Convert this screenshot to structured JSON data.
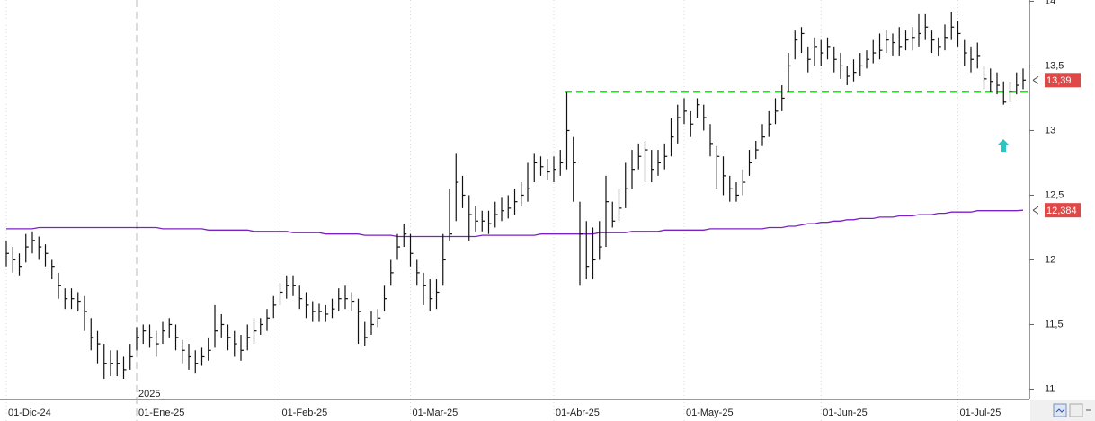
{
  "chart_data": {
    "type": "ohlc",
    "categories": [
      "01-Dic-24",
      null,
      null,
      null,
      null,
      null,
      null,
      null,
      null,
      null,
      null,
      null,
      null,
      null,
      null,
      null,
      null,
      null,
      null,
      null,
      "01-Ene-25",
      null,
      null,
      null,
      null,
      null,
      null,
      null,
      null,
      null,
      null,
      null,
      null,
      null,
      null,
      null,
      null,
      null,
      null,
      null,
      null,
      null,
      "01-Feb-25",
      null,
      null,
      null,
      null,
      null,
      null,
      null,
      null,
      null,
      null,
      null,
      null,
      null,
      null,
      null,
      null,
      null,
      null,
      null,
      "01-Mar-25",
      null,
      null,
      null,
      null,
      null,
      null,
      null,
      null,
      null,
      null,
      null,
      null,
      null,
      null,
      null,
      null,
      null,
      null,
      null,
      null,
      null,
      "01-Abr-25",
      null,
      null,
      null,
      null,
      null,
      null,
      null,
      null,
      null,
      null,
      null,
      null,
      null,
      null,
      null,
      null,
      null,
      null,
      null,
      "01-May-25",
      null,
      null,
      null,
      null,
      null,
      null,
      null,
      null,
      null,
      null,
      null,
      null,
      null,
      null,
      null,
      null,
      null,
      null,
      null,
      null,
      "01-Jun-25",
      null,
      null,
      null,
      null,
      null,
      null,
      null,
      null,
      null,
      null,
      null,
      null,
      null,
      null,
      null,
      null,
      null,
      null,
      null,
      null,
      "01-Jul-25",
      null,
      null,
      null,
      null,
      null,
      null,
      null,
      null,
      null,
      null
    ],
    "year_label": "2025",
    "color": "#111111",
    "high": [
      12.15,
      12.1,
      12.05,
      12.2,
      12.22,
      12.18,
      12.12,
      12.0,
      11.9,
      11.78,
      11.78,
      11.75,
      11.72,
      11.55,
      11.45,
      11.35,
      11.3,
      11.3,
      11.25,
      11.35,
      11.48,
      11.5,
      11.5,
      11.45,
      11.52,
      11.55,
      11.5,
      11.38,
      11.35,
      11.3,
      11.32,
      11.4,
      11.65,
      11.58,
      11.5,
      11.45,
      11.42,
      11.5,
      11.55,
      11.55,
      11.62,
      11.72,
      11.82,
      11.88,
      11.88,
      11.8,
      11.75,
      11.68,
      11.66,
      11.65,
      11.7,
      11.78,
      11.8,
      11.75,
      11.7,
      11.52,
      11.6,
      11.62,
      11.8,
      12.0,
      12.2,
      12.28,
      12.2,
      12.0,
      11.9,
      11.85,
      11.85,
      12.2,
      12.55,
      12.82,
      12.65,
      12.5,
      12.42,
      12.38,
      12.38,
      12.45,
      12.48,
      12.5,
      12.55,
      12.6,
      12.75,
      12.82,
      12.8,
      12.78,
      12.8,
      12.85,
      13.3,
      12.95,
      12.45,
      12.3,
      12.25,
      12.3,
      12.65,
      12.45,
      12.55,
      12.75,
      12.85,
      12.9,
      12.92,
      12.85,
      12.85,
      12.9,
      13.1,
      13.2,
      13.25,
      13.15,
      13.25,
      13.2,
      13.05,
      12.88,
      12.8,
      12.65,
      12.6,
      12.7,
      12.85,
      12.92,
      13.05,
      13.15,
      13.25,
      13.35,
      13.6,
      13.78,
      13.8,
      13.65,
      13.72,
      13.7,
      13.72,
      13.65,
      13.6,
      13.5,
      13.55,
      13.6,
      13.62,
      13.7,
      13.75,
      13.78,
      13.75,
      13.8,
      13.78,
      13.8,
      13.9,
      13.9,
      13.78,
      13.72,
      13.82,
      13.92,
      13.85,
      13.7,
      13.65,
      13.68,
      13.5,
      13.48,
      13.45,
      13.38,
      13.38,
      13.45,
      13.48
    ],
    "low": [
      11.95,
      11.9,
      11.88,
      11.98,
      12.05,
      12.0,
      11.95,
      11.85,
      11.7,
      11.62,
      11.62,
      11.6,
      11.45,
      11.3,
      11.2,
      11.08,
      11.1,
      11.1,
      11.08,
      11.15,
      11.3,
      11.35,
      11.32,
      11.25,
      11.35,
      11.4,
      11.3,
      11.2,
      11.15,
      11.12,
      11.18,
      11.22,
      11.32,
      11.4,
      11.3,
      11.25,
      11.22,
      11.3,
      11.35,
      11.42,
      11.45,
      11.55,
      11.65,
      11.7,
      11.72,
      11.62,
      11.55,
      11.52,
      11.52,
      11.52,
      11.55,
      11.6,
      11.62,
      11.6,
      11.35,
      11.33,
      11.42,
      11.48,
      11.6,
      11.8,
      12.0,
      12.1,
      11.95,
      11.8,
      11.65,
      11.6,
      11.62,
      11.8,
      12.15,
      12.3,
      12.4,
      12.15,
      12.22,
      12.22,
      12.2,
      12.25,
      12.3,
      12.32,
      12.35,
      12.42,
      12.45,
      12.6,
      12.65,
      12.62,
      12.6,
      12.65,
      12.7,
      12.45,
      11.8,
      11.85,
      11.85,
      12.0,
      12.1,
      12.25,
      12.3,
      12.4,
      12.55,
      12.7,
      12.6,
      12.6,
      12.65,
      12.7,
      12.8,
      12.9,
      13.05,
      12.95,
      13.1,
      13.0,
      12.8,
      12.55,
      12.5,
      12.45,
      12.45,
      12.5,
      12.65,
      12.78,
      12.88,
      12.95,
      13.05,
      13.15,
      13.3,
      13.55,
      13.6,
      13.45,
      13.5,
      13.5,
      13.55,
      13.45,
      13.4,
      13.35,
      13.38,
      13.42,
      13.48,
      13.52,
      13.55,
      13.6,
      13.58,
      13.58,
      13.62,
      13.62,
      13.65,
      13.7,
      13.6,
      13.58,
      13.62,
      13.7,
      13.65,
      13.5,
      13.45,
      13.48,
      13.32,
      13.3,
      13.28,
      13.2,
      13.22,
      13.28,
      13.32
    ],
    "close": [
      12.05,
      12.0,
      11.95,
      12.1,
      12.15,
      12.1,
      12.05,
      11.95,
      11.8,
      11.7,
      11.7,
      11.68,
      11.6,
      11.4,
      11.35,
      11.2,
      11.2,
      11.2,
      11.15,
      11.25,
      11.4,
      11.45,
      11.4,
      11.35,
      11.45,
      11.5,
      11.4,
      11.3,
      11.25,
      11.2,
      11.25,
      11.3,
      11.45,
      11.5,
      11.4,
      11.35,
      11.3,
      11.4,
      11.45,
      11.5,
      11.55,
      11.65,
      11.75,
      11.8,
      11.8,
      11.7,
      11.65,
      11.6,
      11.6,
      11.58,
      11.62,
      11.7,
      11.7,
      11.68,
      11.6,
      11.4,
      11.5,
      11.55,
      11.7,
      11.9,
      12.1,
      12.2,
      12.05,
      11.9,
      11.8,
      11.7,
      11.75,
      12.0,
      12.2,
      12.6,
      12.5,
      12.35,
      12.3,
      12.3,
      12.28,
      12.35,
      12.38,
      12.4,
      12.45,
      12.5,
      12.55,
      12.75,
      12.72,
      12.68,
      12.7,
      12.75,
      13.0,
      12.75,
      12.2,
      11.95,
      12.0,
      12.1,
      12.45,
      12.3,
      12.4,
      12.55,
      12.7,
      12.8,
      12.85,
      12.7,
      12.75,
      12.8,
      12.95,
      13.1,
      13.15,
      13.05,
      13.2,
      13.1,
      12.9,
      12.8,
      12.65,
      12.55,
      12.5,
      12.6,
      12.75,
      12.85,
      12.95,
      13.05,
      13.15,
      13.25,
      13.5,
      13.7,
      13.75,
      13.55,
      13.65,
      13.6,
      13.65,
      13.55,
      13.5,
      13.42,
      13.45,
      13.5,
      13.55,
      13.6,
      13.62,
      13.7,
      13.68,
      13.65,
      13.7,
      13.72,
      13.75,
      13.8,
      13.7,
      13.65,
      13.72,
      13.8,
      13.75,
      13.6,
      13.55,
      13.58,
      13.4,
      13.38,
      13.35,
      13.22,
      13.3,
      13.35,
      13.39
    ],
    "close_last_label": "13,39",
    "ma": {
      "color": "#7b22c4",
      "last_label": "12,384",
      "values": [
        12.24,
        12.24,
        12.24,
        12.24,
        12.24,
        12.25,
        12.25,
        12.25,
        12.25,
        12.25,
        12.25,
        12.25,
        12.25,
        12.25,
        12.25,
        12.25,
        12.25,
        12.25,
        12.25,
        12.25,
        12.25,
        12.25,
        12.25,
        12.25,
        12.24,
        12.24,
        12.24,
        12.24,
        12.24,
        12.24,
        12.24,
        12.23,
        12.23,
        12.23,
        12.23,
        12.23,
        12.23,
        12.23,
        12.22,
        12.22,
        12.22,
        12.22,
        12.22,
        12.22,
        12.21,
        12.21,
        12.21,
        12.21,
        12.21,
        12.2,
        12.2,
        12.2,
        12.2,
        12.2,
        12.2,
        12.19,
        12.19,
        12.19,
        12.19,
        12.19,
        12.18,
        12.18,
        12.18,
        12.18,
        12.18,
        12.18,
        12.18,
        12.18,
        12.18,
        12.18,
        12.18,
        12.18,
        12.18,
        12.19,
        12.19,
        12.19,
        12.19,
        12.19,
        12.19,
        12.19,
        12.19,
        12.19,
        12.2,
        12.2,
        12.2,
        12.2,
        12.2,
        12.2,
        12.2,
        12.2,
        12.2,
        12.21,
        12.21,
        12.21,
        12.21,
        12.21,
        12.22,
        12.22,
        12.22,
        12.22,
        12.22,
        12.23,
        12.23,
        12.23,
        12.23,
        12.23,
        12.23,
        12.23,
        12.24,
        12.24,
        12.24,
        12.24,
        12.24,
        12.24,
        12.24,
        12.24,
        12.24,
        12.25,
        12.25,
        12.25,
        12.26,
        12.26,
        12.27,
        12.28,
        12.28,
        12.29,
        12.29,
        12.3,
        12.3,
        12.31,
        12.31,
        12.32,
        12.32,
        12.32,
        12.33,
        12.33,
        12.33,
        12.34,
        12.34,
        12.34,
        12.35,
        12.35,
        12.35,
        12.36,
        12.36,
        12.37,
        12.37,
        12.37,
        12.37,
        12.38,
        12.38,
        12.38,
        12.38,
        12.38,
        12.38,
        12.38,
        12.384
      ]
    },
    "support_level": {
      "value": 13.3,
      "color": "#22dd22"
    },
    "label_box_color": "#e04848",
    "ylim": [
      10.92,
      14.01
    ],
    "yticks": [
      14,
      {
        "value": 13.5,
        "label": "13,5"
      },
      13,
      {
        "value": 12.5,
        "label": "12,5"
      },
      12,
      {
        "value": 11.5,
        "label": "11,5"
      },
      11
    ]
  }
}
